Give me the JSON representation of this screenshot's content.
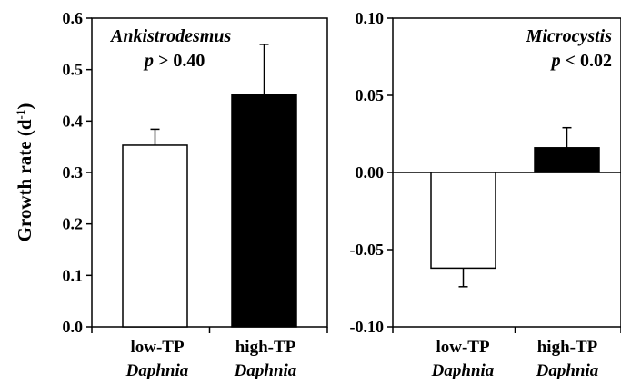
{
  "chart_data": [
    {
      "type": "bar",
      "title": "",
      "ylabel": "Growth rate (d-1)",
      "ylabel_main": "Growth rate (d",
      "ylabel_sup": "-1",
      "ylabel_close": ")",
      "ylim": [
        0.0,
        0.6
      ],
      "yticks": [
        "0.0",
        "0.1",
        "0.2",
        "0.3",
        "0.4",
        "0.5",
        "0.6"
      ],
      "categories": [
        "low-TP Daphnia",
        "high-TP Daphnia"
      ],
      "category_line1": [
        "low-TP",
        "high-TP"
      ],
      "category_line2": [
        "Daphnia",
        "Daphnia"
      ],
      "values": [
        0.353,
        0.452
      ],
      "errors": [
        0.031,
        0.097
      ],
      "bar_colors": [
        "#ffffff",
        "#000000"
      ],
      "annotation_taxon": "Ankistrodesmus",
      "annotation_p": "p",
      "annotation_stat": "> 0.40",
      "annotation_align": "left"
    },
    {
      "type": "bar",
      "title": "",
      "ylim": [
        -0.1,
        0.1
      ],
      "yticks": [
        "-0.10",
        "-0.05",
        "0.00",
        "0.05",
        "0.10"
      ],
      "categories": [
        "low-TP Daphnia",
        "high-TP Daphnia"
      ],
      "category_line1": [
        "low-TP",
        "high-TP"
      ],
      "category_line2": [
        "Daphnia",
        "Daphnia"
      ],
      "values": [
        -0.062,
        0.016
      ],
      "errors": [
        0.012,
        0.013
      ],
      "bar_colors": [
        "#ffffff",
        "#000000"
      ],
      "annotation_taxon": "Microcystis",
      "annotation_p": "p",
      "annotation_stat": "< 0.02",
      "annotation_align": "right"
    }
  ]
}
